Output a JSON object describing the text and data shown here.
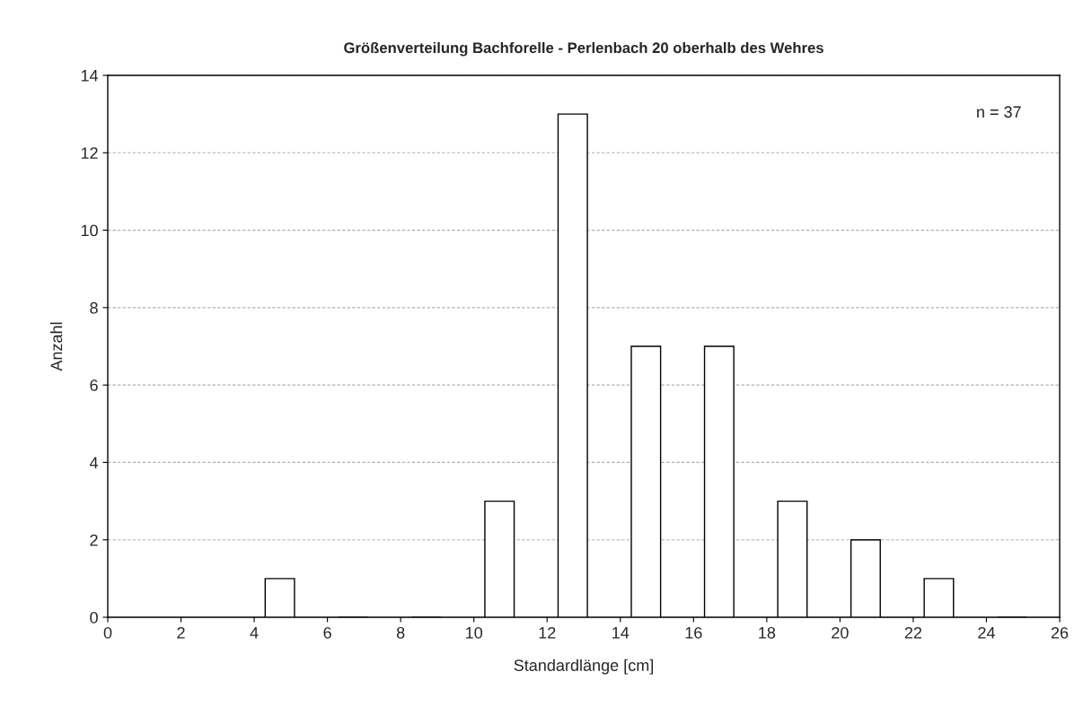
{
  "chart_data": {
    "type": "bar",
    "title": "Größenverteilung Bachforelle - Perlenbach 20 oberhalb des Wehres",
    "xlabel": "Standardlänge [cm]",
    "ylabel": "Anzahl",
    "x": [
      4.7,
      6.7,
      8.7,
      10.7,
      12.7,
      14.7,
      16.7,
      18.7,
      20.7,
      22.7,
      24.7
    ],
    "values": [
      1,
      0,
      0,
      3,
      13,
      7,
      7,
      3,
      2,
      1,
      0
    ],
    "color": "#ffffff",
    "xlim": [
      0,
      26
    ],
    "xticks": [
      0,
      2,
      4,
      6,
      8,
      10,
      12,
      14,
      16,
      18,
      20,
      22,
      24,
      26
    ],
    "ylim": [
      0,
      14
    ],
    "yticks": [
      0,
      2,
      4,
      6,
      8,
      10,
      12,
      14
    ],
    "grid": "y",
    "annotations": [
      "n = 37"
    ]
  }
}
